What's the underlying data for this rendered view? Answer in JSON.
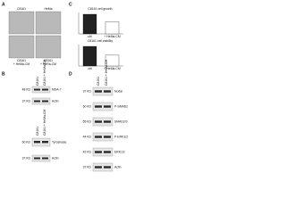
{
  "panels": {
    "a": {
      "label": "A",
      "top_labels": [
        "C8161",
        "HeMa"
      ],
      "bottom_labels": [
        "C8161",
        "+ HeMa-CM",
        "C8161",
        "+ HeRa-CM"
      ]
    },
    "b": {
      "label": "B",
      "upper": {
        "columns": [
          "C8161",
          "C8161 + HeMa-CM"
        ],
        "rows": [
          "MDA-7",
          "Actin"
        ],
        "sizes": [
          "48 KD",
          "37 KD"
        ]
      },
      "lower": {
        "columns": [
          "C8161",
          "C8161 + HeMa-CM"
        ],
        "rows": [
          "Tyrosinase",
          "Actin"
        ],
        "sizes": [
          "60 KD",
          "37 KD"
        ]
      }
    },
    "c": {
      "label": "C",
      "charts": [
        {
          "type": "bar",
          "title": "C8161 cell growth",
          "categories": [
            "ctrl",
            "+ HeMa-CM"
          ],
          "values": [
            100,
            62
          ]
        },
        {
          "type": "bar",
          "title": "C8161 cell viability",
          "categories": [
            "ctrl",
            "+ HeMa-CM"
          ],
          "values": [
            100,
            55
          ]
        }
      ]
    },
    "d": {
      "label": "D",
      "columns": [
        "C8161",
        "C8161 + HeMa-CM"
      ],
      "rows": [
        "Nodal",
        "P-SMAD2",
        "SMAD2/3",
        "P-ERK1/2",
        "ERK1/2",
        "Actin"
      ],
      "sizes": [
        "37 KD",
        "60 KD",
        "55 KD",
        "44 KD",
        "42 KD",
        "37 KD"
      ]
    }
  }
}
